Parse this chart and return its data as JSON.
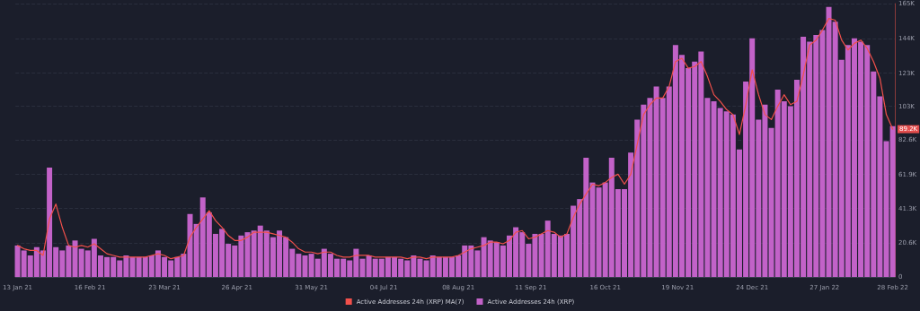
{
  "chart_data": {
    "type": "bar",
    "x": [
      "2021-01-13",
      "2021-01-16",
      "2021-01-19",
      "2021-01-22",
      "2021-01-25",
      "2021-01-28",
      "2021-01-31",
      "2021-02-03",
      "2021-02-06",
      "2021-02-09",
      "2021-02-12",
      "2021-02-15",
      "2021-02-18",
      "2021-02-21",
      "2021-02-24",
      "2021-02-27",
      "2021-03-02",
      "2021-03-05",
      "2021-03-08",
      "2021-03-11",
      "2021-03-14",
      "2021-03-17",
      "2021-03-20",
      "2021-03-23",
      "2021-03-26",
      "2021-03-29",
      "2021-04-01",
      "2021-04-04",
      "2021-04-07",
      "2021-04-10",
      "2021-04-13",
      "2021-04-16",
      "2021-04-19",
      "2021-04-22",
      "2021-04-25",
      "2021-04-28",
      "2021-05-01",
      "2021-05-04",
      "2021-05-07",
      "2021-05-10",
      "2021-05-13",
      "2021-05-16",
      "2021-05-19",
      "2021-05-22",
      "2021-05-25",
      "2021-05-28",
      "2021-05-31",
      "2021-06-03",
      "2021-06-06",
      "2021-06-09",
      "2021-06-12",
      "2021-06-15",
      "2021-06-18",
      "2021-06-21",
      "2021-06-24",
      "2021-06-27",
      "2021-06-30",
      "2021-07-03",
      "2021-07-06",
      "2021-07-09",
      "2021-07-12",
      "2021-07-15",
      "2021-07-18",
      "2021-07-21",
      "2021-07-24",
      "2021-07-27",
      "2021-07-30",
      "2021-08-02",
      "2021-08-05",
      "2021-08-08",
      "2021-08-11",
      "2021-08-14",
      "2021-08-17",
      "2021-08-20",
      "2021-08-23",
      "2021-08-26",
      "2021-08-29",
      "2021-09-01",
      "2021-09-04",
      "2021-09-07",
      "2021-09-10",
      "2021-09-13",
      "2021-09-16",
      "2021-09-19",
      "2021-09-22",
      "2021-09-25",
      "2021-09-28",
      "2021-10-01",
      "2021-10-04",
      "2021-10-07",
      "2021-10-10",
      "2021-10-13",
      "2021-10-16",
      "2021-10-19",
      "2021-10-22",
      "2021-10-25",
      "2021-10-28",
      "2021-10-31",
      "2021-11-03",
      "2021-11-06",
      "2021-11-09",
      "2021-11-12",
      "2021-11-15",
      "2021-11-18",
      "2021-11-21",
      "2021-11-24",
      "2021-11-27",
      "2021-11-30",
      "2021-12-03",
      "2021-12-06",
      "2021-12-09",
      "2021-12-12",
      "2021-12-15",
      "2021-12-18",
      "2021-12-21",
      "2021-12-24",
      "2021-12-27",
      "2021-12-30",
      "2022-01-02",
      "2022-01-05",
      "2022-01-08",
      "2022-01-11",
      "2022-01-14",
      "2022-01-17",
      "2022-01-20",
      "2022-01-23",
      "2022-01-26",
      "2022-01-29",
      "2022-02-01",
      "2022-02-04",
      "2022-02-07",
      "2022-02-10",
      "2022-02-13",
      "2022-02-16",
      "2022-02-19",
      "2022-02-22",
      "2022-02-25",
      "2022-02-28"
    ],
    "series": [
      {
        "name": "Active Addresses 24h (XRP) MA(7)",
        "type": "line",
        "color": "#f2504b",
        "values": [
          19000,
          17000,
          16000,
          16000,
          13000,
          35000,
          44000,
          30000,
          19000,
          18000,
          19000,
          18000,
          20000,
          17000,
          14000,
          13000,
          12000,
          12000,
          12000,
          12000,
          12000,
          13000,
          14000,
          13000,
          11000,
          12000,
          13000,
          24000,
          30000,
          35000,
          40000,
          34000,
          30000,
          25000,
          22000,
          22000,
          24000,
          27000,
          27000,
          27000,
          26000,
          25000,
          24000,
          21000,
          17000,
          15000,
          15000,
          14000,
          15000,
          15000,
          13000,
          12000,
          12000,
          13000,
          13000,
          13000,
          12000,
          12000,
          12000,
          12000,
          12000,
          11000,
          12000,
          12000,
          11000,
          12000,
          12000,
          12000,
          12000,
          13000,
          15000,
          17000,
          18000,
          19000,
          21000,
          21000,
          20000,
          22000,
          27000,
          28000,
          23000,
          24000,
          26000,
          28000,
          27000,
          24000,
          26000,
          36000,
          44000,
          50000,
          56000,
          55000,
          57000,
          60000,
          62000,
          56000,
          62000,
          80000,
          98000,
          104000,
          108000,
          108000,
          115000,
          130000,
          132000,
          126000,
          127000,
          130000,
          121000,
          110000,
          106000,
          101000,
          98000,
          86000,
          104000,
          125000,
          110000,
          98000,
          95000,
          103000,
          110000,
          104000,
          106000,
          122000,
          140000,
          143000,
          149000,
          156000,
          155000,
          143000,
          137000,
          141000,
          143000,
          138000,
          130000,
          120000,
          98000,
          89200
        ]
      },
      {
        "name": "Active Addresses 24h (XRP)",
        "color": "#c262c8",
        "values": [
          19000,
          16000,
          13000,
          18000,
          16000,
          66000,
          18000,
          16000,
          19000,
          22000,
          17000,
          16000,
          23000,
          13000,
          12000,
          12000,
          10000,
          13000,
          12000,
          12000,
          12000,
          13000,
          16000,
          12000,
          10000,
          12000,
          14000,
          38000,
          32000,
          48000,
          39000,
          26000,
          29000,
          20000,
          19000,
          25000,
          27000,
          28000,
          31000,
          28000,
          24000,
          28000,
          24000,
          17000,
          14000,
          13000,
          14000,
          11000,
          17000,
          14000,
          11000,
          11000,
          10000,
          17000,
          11000,
          13000,
          11000,
          11000,
          12000,
          12000,
          11000,
          10000,
          13000,
          11000,
          10000,
          13000,
          12000,
          12000,
          12000,
          13000,
          19000,
          19000,
          16000,
          24000,
          22000,
          21000,
          19000,
          25000,
          30000,
          27000,
          20000,
          26000,
          26000,
          34000,
          26000,
          25000,
          26000,
          43000,
          47000,
          72000,
          57000,
          54000,
          57000,
          72000,
          53000,
          53000,
          75000,
          95000,
          104000,
          108000,
          115000,
          108000,
          115000,
          140000,
          134000,
          126000,
          130000,
          136000,
          108000,
          106000,
          102000,
          100000,
          98000,
          77000,
          118000,
          144000,
          95000,
          104000,
          90000,
          113000,
          106000,
          103000,
          119000,
          145000,
          142000,
          146000,
          149000,
          163000,
          154000,
          131000,
          140000,
          144000,
          142000,
          140000,
          124000,
          109000,
          82000,
          91000
        ]
      }
    ],
    "xlim": [
      "2021-01-12",
      "2022-03-01"
    ],
    "xticks": [
      {
        "value": "2021-01-13",
        "label": "13 Jan 21"
      },
      {
        "value": "2021-02-16",
        "label": "16 Feb 21"
      },
      {
        "value": "2021-03-23",
        "label": "23 Mar 21"
      },
      {
        "value": "2021-04-26",
        "label": "26 Apr 21"
      },
      {
        "value": "2021-05-31",
        "label": "31 May 21"
      },
      {
        "value": "2021-07-04",
        "label": "04 Jul 21"
      },
      {
        "value": "2021-08-08",
        "label": "08 Aug 21"
      },
      {
        "value": "2021-09-11",
        "label": "11 Sep 21"
      },
      {
        "value": "2021-10-16",
        "label": "16 Oct 21"
      },
      {
        "value": "2021-11-19",
        "label": "19 Nov 21"
      },
      {
        "value": "2021-12-24",
        "label": "24 Dec 21"
      },
      {
        "value": "2022-01-27",
        "label": "27 Jan 22"
      },
      {
        "value": "2022-02-28",
        "label": "28 Feb 22"
      }
    ],
    "ylim": [
      0,
      165000
    ],
    "yticks": [
      0,
      {
        "value": 20600,
        "label": "20.6K"
      },
      {
        "value": 41300,
        "label": "41.3K"
      },
      {
        "value": 61900,
        "label": "61.9K"
      },
      {
        "value": 82600,
        "label": "82.6K"
      },
      {
        "value": 103000,
        "label": "103K"
      },
      {
        "value": 123000,
        "label": "123K"
      },
      {
        "value": 144000,
        "label": "144K"
      },
      {
        "value": 165000,
        "label": "165K"
      }
    ],
    "annotations": [
      {
        "text": "89.2K",
        "x": "2022-02-28",
        "y": 89200
      }
    ],
    "grid": "y",
    "legend": "bottom",
    "marker": "none",
    "line_style": "solid"
  }
}
